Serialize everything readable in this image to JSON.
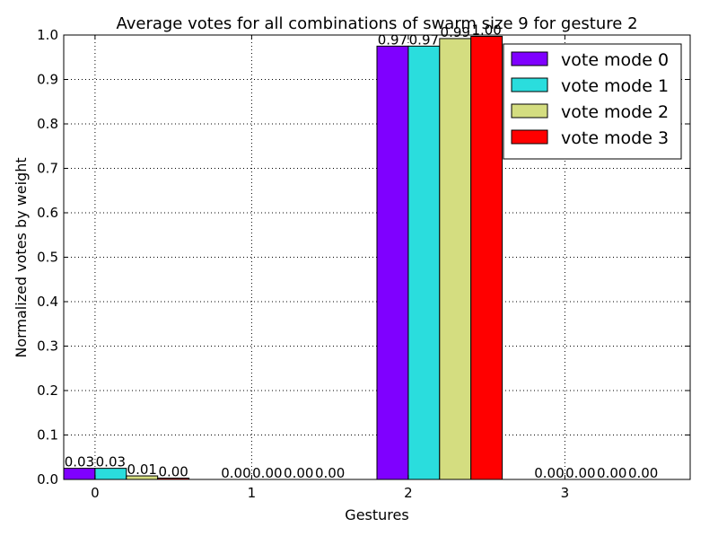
{
  "chart_data": {
    "type": "bar",
    "title": "Average votes for all combinations of swarm size 9 for gesture 2",
    "xlabel": "Gestures",
    "ylabel": "Normalized votes by weight",
    "categories": [
      "0",
      "1",
      "2",
      "3"
    ],
    "ylim": [
      0.0,
      1.0
    ],
    "xlim": [
      -0.2,
      3.8
    ],
    "yticks": [
      "0.0",
      "0.1",
      "0.2",
      "0.3",
      "0.4",
      "0.5",
      "0.6",
      "0.7",
      "0.8",
      "0.9",
      "1.0"
    ],
    "grid": true,
    "legend_position": "top-right",
    "series": [
      {
        "name": "vote mode 0",
        "color": "#7f00ff",
        "values": [
          0.025,
          0.0,
          0.975,
          0.0
        ],
        "labels": [
          "0.03",
          "0.00",
          "0.97",
          "0.00"
        ]
      },
      {
        "name": "vote mode 1",
        "color": "#2adddd",
        "values": [
          0.025,
          0.0,
          0.975,
          0.0
        ],
        "labels": [
          "0.03",
          "0.00",
          "0.97",
          "0.00"
        ]
      },
      {
        "name": "vote mode 2",
        "color": "#d4dd80",
        "values": [
          0.008,
          0.0,
          0.992,
          0.0
        ],
        "labels": [
          "0.01",
          "0.00",
          "0.99",
          "0.00"
        ]
      },
      {
        "name": "vote mode 3",
        "color": "#ff0000",
        "values": [
          0.003,
          0.0,
          0.997,
          0.0
        ],
        "labels": [
          "0.00",
          "0.00",
          "1.00",
          "0.00"
        ]
      }
    ]
  }
}
